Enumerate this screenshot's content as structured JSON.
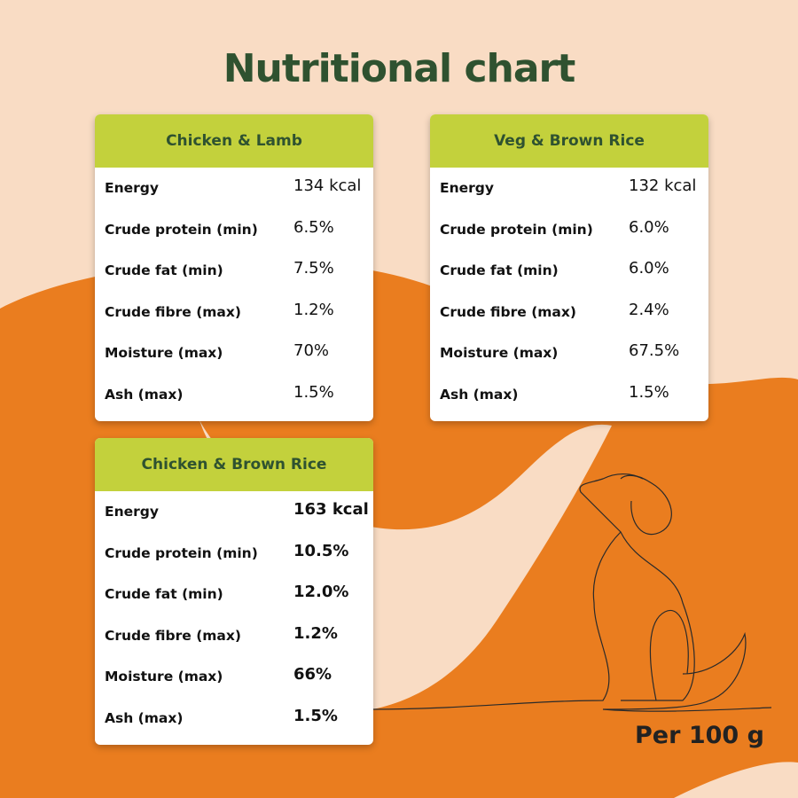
{
  "title": "Nutritional chart",
  "tables": [
    {
      "name": "Chicken & Lamb",
      "rows": [
        [
          "Energy",
          "134 kcal"
        ],
        [
          "Crude protein (min)",
          "6.5%"
        ],
        [
          "Crude fat (min)",
          "7.5%"
        ],
        [
          "Crude fibre (max)",
          "1.2%"
        ],
        [
          "Moisture (max)",
          "70%"
        ],
        [
          "Ash (max)",
          "1.5%"
        ]
      ]
    },
    {
      "name": "Veg & Brown Rice",
      "rows": [
        [
          "Energy",
          "132 kcal"
        ],
        [
          "Crude protein (min)",
          "6.0%"
        ],
        [
          "Crude fat (min)",
          "6.0%"
        ],
        [
          "Crude fibre (max)",
          "2.4%"
        ],
        [
          "Moisture (max)",
          "67.5%"
        ],
        [
          "Ash (max)",
          "1.5%"
        ]
      ]
    },
    {
      "name": "Chicken & Brown Rice",
      "rows": [
        [
          "Energy",
          "163 kcal"
        ],
        [
          "Crude protein (min)",
          "10.5%"
        ],
        [
          "Crude fat (min)",
          "12.0%"
        ],
        [
          "Crude fibre (max)",
          "1.2%"
        ],
        [
          "Moisture (max)",
          "66%"
        ],
        [
          "Ash (max)",
          "1.5%"
        ]
      ]
    }
  ],
  "footer": "Per 100 g"
}
